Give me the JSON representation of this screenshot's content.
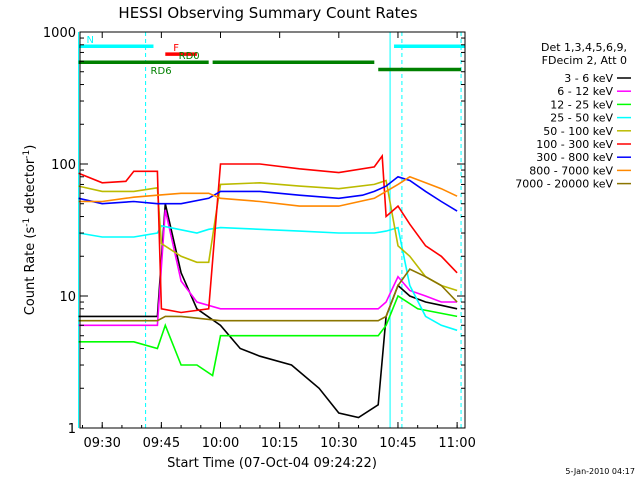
{
  "chart_data": {
    "type": "line",
    "title": "HESSI Observing Summary Count Rates",
    "xlabel": "Start Time (07-Oct-04 09:24:22)",
    "ylabel": "Count Rate (s",
    "ylabel_exp1": "-1",
    "ylabel_mid": " detector",
    "ylabel_exp2": "-1",
    "ylabel_end": ")",
    "y_scale": "log",
    "xlim": [
      "09:24:22",
      "11:02:00"
    ],
    "ylim": [
      1,
      1000
    ],
    "x_ticks": [
      "09:30",
      "09:45",
      "10:00",
      "10:15",
      "10:30",
      "10:45",
      "11:00"
    ],
    "y_ticks": [
      "1",
      "10",
      "100",
      "1000"
    ],
    "legend": {
      "placement": "right",
      "header": [
        "Det 1,3,4,5,6,9,",
        "FDecim 2, Att 0"
      ]
    },
    "footer_date": "5-Jan-2010 04:17",
    "series": [
      {
        "name": "3 - 6 keV",
        "color": "#000000",
        "x": [
          "09:24",
          "09:40",
          "09:44",
          "09:46",
          "09:50",
          "09:54",
          "10:00",
          "10:05",
          "10:10",
          "10:18",
          "10:25",
          "10:30",
          "10:35",
          "10:40",
          "10:42",
          "10:45",
          "10:48",
          "10:52",
          "10:56",
          "11:00"
        ],
        "y": [
          7,
          7,
          7,
          50,
          15,
          8,
          6,
          4,
          3.5,
          3,
          2,
          1.3,
          1.2,
          1.5,
          7,
          12,
          10,
          9,
          8.5,
          8
        ]
      },
      {
        "name": "6 - 12 keV",
        "color": "#ff00ff",
        "x": [
          "09:24",
          "09:40",
          "09:44",
          "09:46",
          "09:50",
          "09:54",
          "10:00",
          "10:10",
          "10:20",
          "10:30",
          "10:40",
          "10:42",
          "10:45",
          "10:48",
          "10:52",
          "10:56",
          "11:00"
        ],
        "y": [
          6,
          6,
          6,
          45,
          13,
          9,
          8,
          8,
          8,
          8,
          8,
          9,
          14,
          11,
          10,
          9,
          9
        ]
      },
      {
        "name": "12 - 25 keV",
        "color": "#00ff00",
        "x": [
          "09:24",
          "09:30",
          "09:38",
          "09:44",
          "09:46",
          "09:50",
          "09:54",
          "09:58",
          "10:00",
          "10:10",
          "10:20",
          "10:30",
          "10:40",
          "10:42",
          "10:45",
          "10:50",
          "11:00"
        ],
        "y": [
          4.5,
          4.5,
          4.5,
          4,
          6,
          3,
          3,
          2.5,
          5,
          5,
          5,
          5,
          5,
          6,
          10,
          8,
          7
        ]
      },
      {
        "name": "25 - 50 keV",
        "color": "#00ffff",
        "x": [
          "09:24",
          "09:30",
          "09:38",
          "09:44",
          "09:45",
          "09:54",
          "09:57",
          "10:00",
          "10:10",
          "10:20",
          "10:30",
          "10:39",
          "10:42",
          "10:45",
          "10:48",
          "10:52",
          "10:56",
          "11:00"
        ],
        "y": [
          30,
          28,
          28,
          30,
          34,
          30,
          32,
          33,
          32,
          31,
          30,
          30,
          31,
          33,
          12,
          7,
          6,
          5.5
        ]
      },
      {
        "name": "50 - 100 keV",
        "color": "#bbbb00",
        "x": [
          "09:24",
          "09:30",
          "09:38",
          "09:44",
          "09:45",
          "09:50",
          "09:54",
          "09:57",
          "10:00",
          "10:10",
          "10:20",
          "10:30",
          "10:39",
          "10:42",
          "10:45",
          "10:48",
          "10:52",
          "10:56",
          "11:00"
        ],
        "y": [
          68,
          62,
          62,
          66,
          25,
          20,
          18,
          18,
          70,
          72,
          68,
          65,
          70,
          75,
          24,
          20,
          14,
          12,
          11
        ]
      },
      {
        "name": "100 - 300 keV",
        "color": "#ff0000",
        "x": [
          "09:24",
          "09:30",
          "09:36",
          "09:38",
          "09:44",
          "09:45",
          "09:50",
          "09:57",
          "10:00",
          "10:10",
          "10:20",
          "10:30",
          "10:39",
          "10:41",
          "10:42",
          "10:45",
          "10:48",
          "10:52",
          "10:56",
          "11:00"
        ],
        "y": [
          85,
          72,
          74,
          88,
          88,
          8,
          7.5,
          8,
          100,
          100,
          92,
          86,
          95,
          115,
          40,
          48,
          35,
          24,
          20,
          15
        ]
      },
      {
        "name": "300 - 800 keV",
        "color": "#0000ff",
        "x": [
          "09:24",
          "09:30",
          "09:38",
          "09:44",
          "09:50",
          "09:57",
          "10:00",
          "10:10",
          "10:20",
          "10:30",
          "10:36",
          "10:39",
          "10:42",
          "10:45",
          "10:48",
          "10:52",
          "10:56",
          "11:00"
        ],
        "y": [
          55,
          50,
          52,
          50,
          50,
          55,
          62,
          62,
          58,
          55,
          58,
          62,
          68,
          80,
          75,
          62,
          52,
          44
        ]
      },
      {
        "name": "800 - 7000 keV",
        "color": "#ff8800",
        "x": [
          "09:24",
          "09:30",
          "09:38",
          "09:44",
          "09:50",
          "09:57",
          "10:00",
          "10:10",
          "10:20",
          "10:30",
          "10:39",
          "10:42",
          "10:45",
          "10:48",
          "10:52",
          "10:56",
          "11:00"
        ],
        "y": [
          52,
          52,
          56,
          58,
          60,
          60,
          55,
          52,
          48,
          48,
          55,
          62,
          70,
          80,
          72,
          65,
          57
        ]
      },
      {
        "name": "7000 - 20000 keV",
        "color": "#8b7500",
        "x": [
          "09:24",
          "09:30",
          "09:38",
          "09:44",
          "09:46",
          "09:50",
          "10:00",
          "10:10",
          "10:20",
          "10:30",
          "10:40",
          "10:42",
          "10:45",
          "10:48",
          "10:52",
          "10:56",
          "11:00"
        ],
        "y": [
          6.5,
          6.5,
          6.5,
          6.5,
          7,
          7,
          6.5,
          6.5,
          6.5,
          6.5,
          6.5,
          7,
          12,
          16,
          14,
          12,
          9
        ]
      }
    ],
    "annotations": [
      {
        "label": "N",
        "color": "#00ffff",
        "x_start": "09:24",
        "x_end": "09:43",
        "y": 780
      },
      {
        "label": "",
        "color": "#00ffff",
        "x_start": "10:44",
        "x_end": "11:02",
        "y": 780
      },
      {
        "label": "F",
        "color": "#ff0000",
        "x_start": "09:46",
        "x_end": "09:54",
        "y": 680
      },
      {
        "label": "RD0",
        "color": "#008000",
        "x_start": "09:58",
        "x_end": "10:39",
        "y": 590
      },
      {
        "label": "RD6",
        "color": "#008000",
        "x_start": "09:24",
        "x_end": "09:57",
        "y": 590
      },
      {
        "label": "",
        "color": "#008000",
        "x_start": "10:40",
        "x_end": "11:01",
        "y": 520
      }
    ],
    "vertical_markers": [
      {
        "color": "#00ffff",
        "x": "09:24",
        "style": "solid"
      },
      {
        "color": "#00ffff",
        "x": "09:41",
        "style": "dashed"
      },
      {
        "color": "#00ffff",
        "x": "10:43",
        "style": "solid"
      },
      {
        "color": "#00ffff",
        "x": "10:46",
        "style": "dashed"
      },
      {
        "color": "#00ffff",
        "x": "11:01",
        "style": "dashed"
      }
    ]
  }
}
